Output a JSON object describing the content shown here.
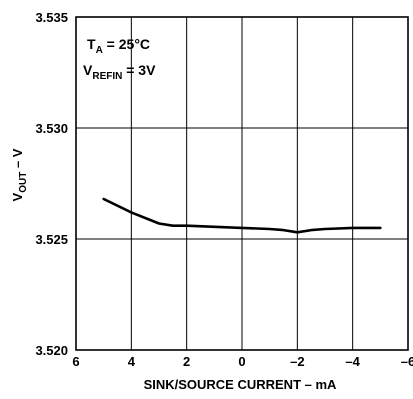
{
  "chart_data": {
    "type": "line",
    "xlabel": "SINK/SOURCE CURRENT – mA",
    "ylabel_main": "V",
    "ylabel_sub": "OUT",
    "ylabel_rest": " – V",
    "xlim": [
      6,
      -6
    ],
    "ylim": [
      3.52,
      3.535
    ],
    "x_ticks": [
      6,
      4,
      2,
      0,
      -2,
      -4,
      -6
    ],
    "x_tick_labels": [
      "6",
      "4",
      "2",
      "0",
      "–2",
      "–4",
      "–6"
    ],
    "y_ticks": [
      3.52,
      3.525,
      3.53,
      3.535
    ],
    "y_tick_labels": [
      "3.520",
      "3.525",
      "3.530",
      "3.535"
    ],
    "grid": true,
    "annotations": [
      {
        "main": "T",
        "sub": "A",
        "rest": " = 25°C"
      },
      {
        "main": "V",
        "sub": "REFIN",
        "rest": " = 3V"
      }
    ],
    "series": [
      {
        "x": [
          5,
          4,
          3,
          2.5,
          2,
          1,
          0,
          -1,
          -1.5,
          -2,
          -2.5,
          -3,
          -4,
          -5
        ],
        "y": [
          3.5268,
          3.5262,
          3.5257,
          3.5256,
          3.5256,
          3.52555,
          3.5255,
          3.52545,
          3.5254,
          3.5253,
          3.5254,
          3.52545,
          3.5255,
          3.5255
        ]
      }
    ]
  }
}
